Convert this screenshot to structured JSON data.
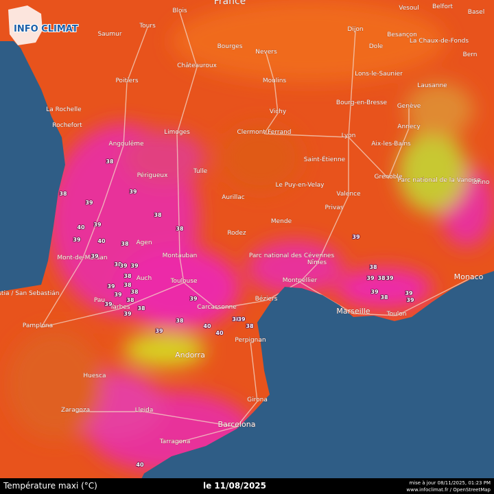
{
  "logo": "INFO CLIMAT",
  "country_label": "France",
  "footer": {
    "title": "Température maxi (°C)",
    "date": "le 11/08/2025",
    "update": "mise à jour 08/11/2025, 01:23 PM",
    "credit": "www.infoclimat.fr / OpenStreetMap"
  },
  "cities": [
    "Blois",
    "Tours",
    "Saumur",
    "Bourges",
    "Nevers",
    "Dijon",
    "Vesoul",
    "Belfort",
    "Basel",
    "Besançon",
    "Dole",
    "La Chaux-de-Fonds",
    "Bern",
    "Châteauroux",
    "Poitiers",
    "Moulins",
    "Lons-le-Saunier",
    "Lausanne",
    "La Rochelle",
    "Rochefort",
    "Limoges",
    "Vichy",
    "Clermont-Ferrand",
    "Lyon",
    "Bourg-en-Bresse",
    "Genève",
    "Annecy",
    "Aix-les-Bains",
    "Angoulême",
    "Saint-Étienne",
    "Périgueux",
    "Tulle",
    "Grenoble",
    "Le Puy-en-Velay",
    "Aurillac",
    "Valence",
    "Privas",
    "Mende",
    "Rodez",
    "Agen",
    "Montauban",
    "Mont-de-Marsan",
    "Auch",
    "Toulouse",
    "Montpellier",
    "Nîmes",
    "Marseille",
    "Toulon",
    "Monaco",
    "Torino",
    "Donostia / San Sebastián",
    "Pamplona",
    "Tarbes",
    "Pau",
    "Carcassonne",
    "Béziers",
    "Perpignan",
    "Andorra",
    "Girona",
    "Barcelona",
    "Lleida",
    "Zaragoza",
    "Huesca",
    "Tarragona",
    "Parc national des Cévennes",
    "Parc national de la Vanoise"
  ],
  "temperatures": [
    38,
    39,
    38,
    39,
    38,
    38,
    40,
    39,
    40,
    39,
    38,
    39,
    38,
    39,
    39,
    38,
    39,
    38,
    39,
    38,
    39,
    38,
    39,
    38,
    39,
    38,
    40,
    40,
    38,
    39,
    38,
    39,
    39,
    38,
    39,
    38,
    39,
    39,
    38,
    39,
    40,
    39
  ]
}
